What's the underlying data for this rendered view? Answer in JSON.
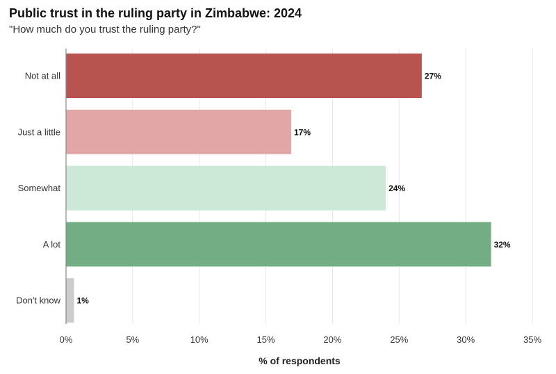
{
  "chart_data": {
    "type": "bar",
    "orientation": "horizontal",
    "title": "Public trust in the ruling party in Zimbabwe: 2024",
    "subtitle": "\"How much do you trust the ruling party?\"",
    "xlabel": "% of respondents",
    "ylabel": "",
    "xlim": [
      0,
      35
    ],
    "x_ticks": [
      0,
      5,
      10,
      15,
      20,
      25,
      30,
      35
    ],
    "x_tick_labels": [
      "0%",
      "5%",
      "10%",
      "15%",
      "20%",
      "25%",
      "30%",
      "35%"
    ],
    "grid": "vertical",
    "categories": [
      "Not at all",
      "Just a little",
      "Somewhat",
      "A lot",
      "Don't know"
    ],
    "values": [
      26.7,
      16.9,
      24.0,
      31.9,
      0.6
    ],
    "value_labels": [
      "27%",
      "17%",
      "24%",
      "32%",
      "1%"
    ],
    "colors": [
      "#b85450",
      "#e3a6a6",
      "#cce8d6",
      "#72ad84",
      "#cccccc"
    ]
  }
}
